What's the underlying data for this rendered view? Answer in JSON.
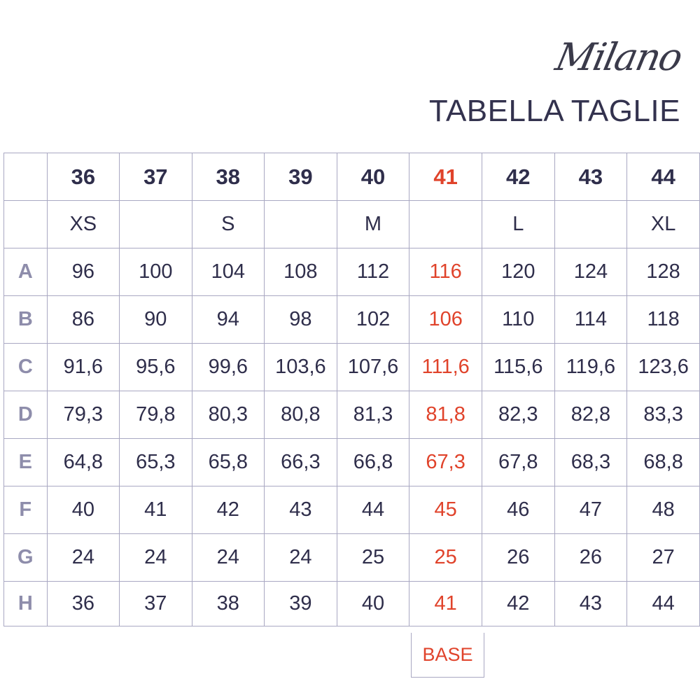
{
  "brand": "Milano",
  "title": "TABELLA TAGLIE",
  "accent_color": "#e0432b",
  "base_label": "BASE",
  "base_column_index": 5,
  "sizes": [
    "36",
    "37",
    "38",
    "39",
    "40",
    "41",
    "42",
    "43",
    "44"
  ],
  "letter_sizes": [
    "XS",
    "",
    "S",
    "",
    "M",
    "",
    "L",
    "",
    "XL"
  ],
  "rows": [
    {
      "label": "A",
      "values": [
        "96",
        "100",
        "104",
        "108",
        "112",
        "116",
        "120",
        "124",
        "128"
      ]
    },
    {
      "label": "B",
      "values": [
        "86",
        "90",
        "94",
        "98",
        "102",
        "106",
        "110",
        "114",
        "118"
      ]
    },
    {
      "label": "C",
      "values": [
        "91,6",
        "95,6",
        "99,6",
        "103,6",
        "107,6",
        "111,6",
        "115,6",
        "119,6",
        "123,6"
      ]
    },
    {
      "label": "D",
      "values": [
        "79,3",
        "79,8",
        "80,3",
        "80,8",
        "81,3",
        "81,8",
        "82,3",
        "82,8",
        "83,3"
      ]
    },
    {
      "label": "E",
      "values": [
        "64,8",
        "65,3",
        "65,8",
        "66,3",
        "66,8",
        "67,3",
        "67,8",
        "68,3",
        "68,8"
      ]
    },
    {
      "label": "F",
      "values": [
        "40",
        "41",
        "42",
        "43",
        "44",
        "45",
        "46",
        "47",
        "48"
      ]
    },
    {
      "label": "G",
      "values": [
        "24",
        "24",
        "24",
        "24",
        "25",
        "25",
        "26",
        "26",
        "27"
      ]
    },
    {
      "label": "H",
      "values": [
        "36",
        "37",
        "38",
        "39",
        "40",
        "41",
        "42",
        "43",
        "44"
      ]
    }
  ]
}
